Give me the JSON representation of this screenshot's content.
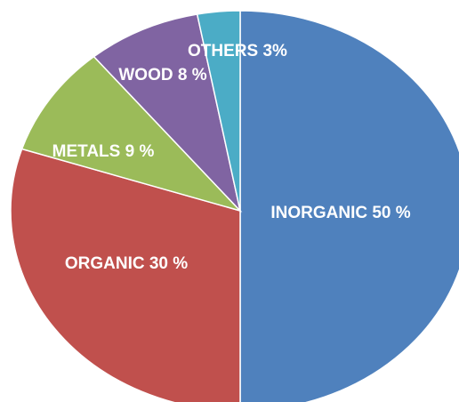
{
  "chart_data": {
    "type": "pie",
    "title": "",
    "start_angle_deg": 0,
    "direction": "clockwise",
    "slices": [
      {
        "label": "INORGANIC 50 %",
        "category": "INORGANIC",
        "value": 50,
        "color": "#4f81bd"
      },
      {
        "label": "ORGANIC 30 %",
        "category": "ORGANIC",
        "value": 30,
        "color": "#c0504d"
      },
      {
        "label": "METALS 9 %",
        "category": "METALS",
        "value": 9,
        "color": "#9bbb59"
      },
      {
        "label": "WOOD 8 %",
        "category": "WOOD",
        "value": 8,
        "color": "#8064a2"
      },
      {
        "label": "OTHERS 3%",
        "category": "OTHERS",
        "value": 3,
        "color": "#4bacc6"
      }
    ],
    "legend": "none",
    "labels_inside": true
  }
}
